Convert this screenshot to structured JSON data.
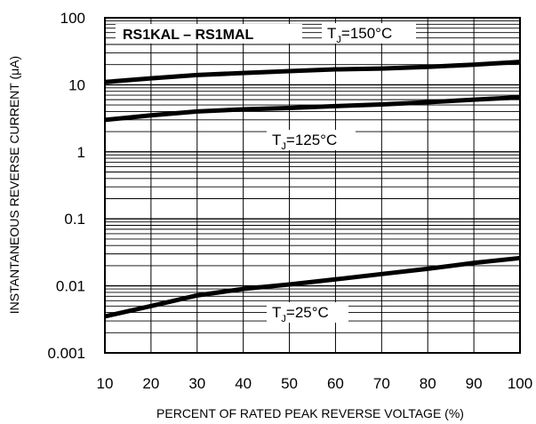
{
  "chart_data": {
    "type": "line",
    "title": "RS1KAL – RS1MAL",
    "xlabel": "PERCENT OF RATED PEAK REVERSE VOLTAGE (%)",
    "ylabel": "INSTANTANEOUS REVERSE CURRENT (μA)",
    "xlim": [
      10,
      100
    ],
    "ylim": [
      0.001,
      100
    ],
    "yscale": "log",
    "grid": true,
    "x_ticks": [
      "10",
      "20",
      "30",
      "40",
      "50",
      "60",
      "70",
      "80",
      "90",
      "100"
    ],
    "y_ticks": [
      "0.001",
      "0.01",
      "0.1",
      "1",
      "10",
      "100"
    ],
    "x": [
      10,
      20,
      30,
      40,
      50,
      60,
      70,
      80,
      90,
      100
    ],
    "series": [
      {
        "label_prefix": "T",
        "label_sub": "J",
        "label_suffix": "=150°C",
        "values": [
          11,
          12.5,
          14,
          15,
          16,
          17,
          17.5,
          18.5,
          20,
          22
        ]
      },
      {
        "label_prefix": "T",
        "label_sub": "J",
        "label_suffix": "=125°C",
        "values": [
          3.0,
          3.5,
          4.0,
          4.3,
          4.5,
          4.8,
          5.1,
          5.5,
          6.0,
          6.5
        ]
      },
      {
        "label_prefix": "T",
        "label_sub": "J",
        "label_suffix": "=25°C",
        "values": [
          0.0035,
          0.005,
          0.0072,
          0.009,
          0.0105,
          0.0125,
          0.015,
          0.018,
          0.022,
          0.026
        ]
      }
    ]
  }
}
